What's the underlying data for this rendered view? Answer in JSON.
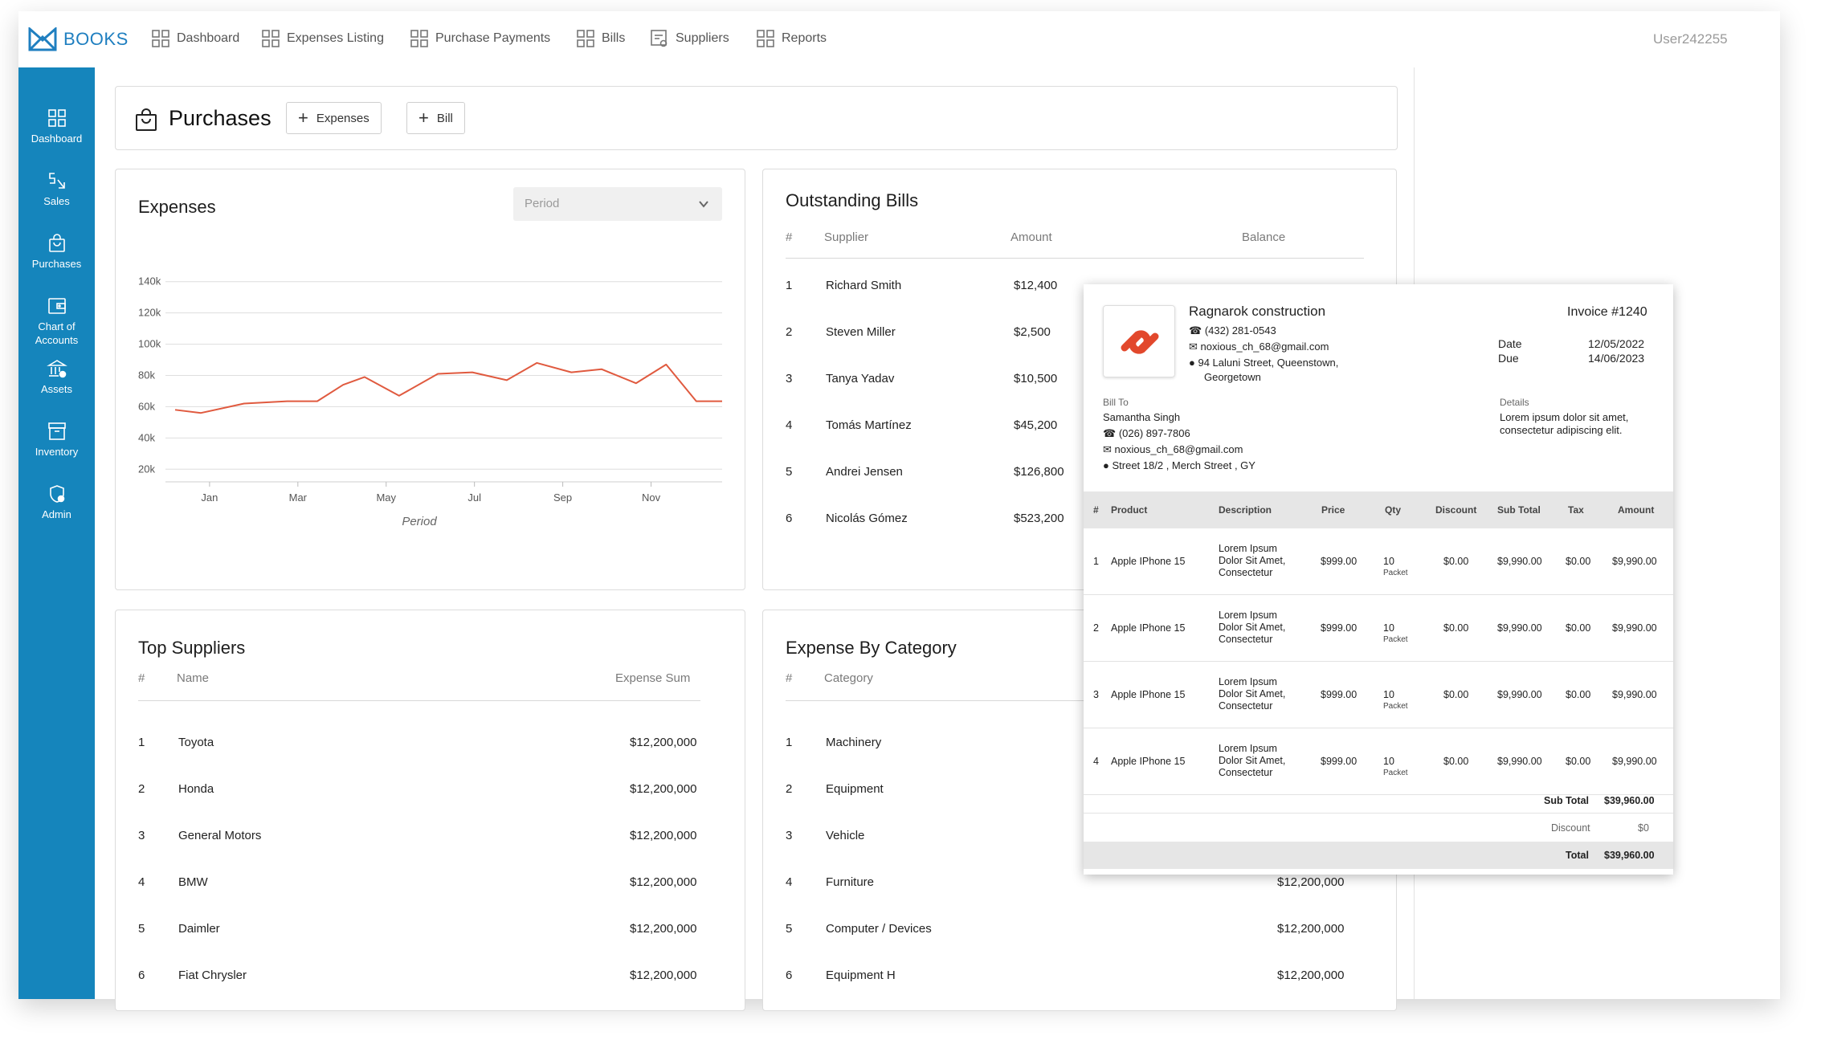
{
  "app": {
    "brand": "BOOKS",
    "user": "User242255"
  },
  "nav": [
    {
      "label": "Dashboard"
    },
    {
      "label": "Expenses Listing"
    },
    {
      "label": "Purchase Payments"
    },
    {
      "label": "Bills"
    },
    {
      "label": "Suppliers"
    },
    {
      "label": "Reports"
    }
  ],
  "sidebar": [
    {
      "label": "Dashboard"
    },
    {
      "label": "Sales"
    },
    {
      "label": "Purchases"
    },
    {
      "label": "Chart of",
      "label2": "Accounts"
    },
    {
      "label": "Assets"
    },
    {
      "label": "Inventory"
    },
    {
      "label": "Admin"
    }
  ],
  "header": {
    "title": "Purchases",
    "btn_expenses": "Expenses",
    "btn_bill": "Bill"
  },
  "expenses_card": {
    "title": "Expenses",
    "period_placeholder": "Period"
  },
  "chart_data": {
    "type": "line",
    "title": "Expenses",
    "xlabel": "Period",
    "ylabel": "",
    "x_ticks": [
      "Jan",
      "Mar",
      "May",
      "Jul",
      "Sep",
      "Nov"
    ],
    "y_ticks": [
      "140k",
      "120k",
      "100k",
      "80k",
      "60k",
      "40k",
      "20k"
    ],
    "ylim": [
      15000,
      145000
    ],
    "x": [
      0,
      0.6,
      1.6,
      2.6,
      3.3,
      3.9,
      4.4,
      5.2,
      6.1,
      6.9,
      7.7,
      8.4,
      9.2,
      9.9,
      10.7,
      11.4,
      12.1,
      12.7
    ],
    "values": [
      58000,
      56000,
      62000,
      63500,
      63500,
      74000,
      79000,
      67000,
      81000,
      82000,
      77000,
      88000,
      82000,
      84000,
      75000,
      87000,
      63500,
      63500
    ],
    "color": "#e05a3f",
    "grid": true
  },
  "outstanding": {
    "title": "Outstanding Bills",
    "headers": [
      "#",
      "Supplier",
      "Amount",
      "Balance"
    ],
    "rows": [
      {
        "n": "1",
        "supplier": "Richard Smith",
        "amount": "$12,400"
      },
      {
        "n": "2",
        "supplier": "Steven Miller",
        "amount": "$2,500"
      },
      {
        "n": "3",
        "supplier": "Tanya Yadav",
        "amount": "$10,500"
      },
      {
        "n": "4",
        "supplier": "Tomás Martínez",
        "amount": "$45,200"
      },
      {
        "n": "5",
        "supplier": "Andrei Jensen",
        "amount": "$126,800"
      },
      {
        "n": "6",
        "supplier": "Nicolás Gómez",
        "amount": "$523,200"
      }
    ]
  },
  "top_suppliers": {
    "title": "Top Suppliers",
    "headers": [
      "#",
      "Name",
      "Expense Sum"
    ],
    "rows": [
      {
        "n": "1",
        "name": "Toyota",
        "sum": "$12,200,000"
      },
      {
        "n": "2",
        "name": "Honda",
        "sum": "$12,200,000"
      },
      {
        "n": "3",
        "name": "General Motors",
        "sum": "$12,200,000"
      },
      {
        "n": "4",
        "name": "BMW",
        "sum": "$12,200,000"
      },
      {
        "n": "5",
        "name": "Daimler",
        "sum": "$12,200,000"
      },
      {
        "n": "6",
        "name": "Fiat Chrysler",
        "sum": "$12,200,000"
      }
    ]
  },
  "by_category": {
    "title": "Expense By Category",
    "headers": [
      "#",
      "Category"
    ],
    "rows": [
      {
        "n": "1",
        "name": "Machinery",
        "sum": ""
      },
      {
        "n": "2",
        "name": "Equipment",
        "sum": ""
      },
      {
        "n": "3",
        "name": "Vehicle",
        "sum": ""
      },
      {
        "n": "4",
        "name": "Furniture",
        "sum": "$12,200,000"
      },
      {
        "n": "5",
        "name": "Computer / Devices",
        "sum": "$12,200,000"
      },
      {
        "n": "6",
        "name": "Equipment H",
        "sum": "$12,200,000"
      }
    ]
  },
  "invoice": {
    "company": "Ragnarok construction",
    "phone": "(432) 281-0543",
    "email": "noxious_ch_68@gmail.com",
    "address1": "94 Laluni Street, Queenstown,",
    "address2": "Georgetown",
    "number": "Invoice #1240",
    "date_label": "Date",
    "date": "12/05/2022",
    "due_label": "Due",
    "due": "14/06/2023",
    "bill_to_label": "Bill To",
    "bill_name": "Samantha Singh",
    "bill_phone": "(026) 897-7806",
    "bill_email": "noxious_ch_68@gmail.com",
    "bill_address": "Street 18/2 , Merch Street , GY",
    "details_label": "Details",
    "details1": "Lorem ipsum dolor sit amet,",
    "details2": "consectetur adipiscing elit.",
    "headers": [
      "#",
      "Product",
      "Description",
      "Price",
      "Qty",
      "Discount",
      "Sub Total",
      "Tax",
      "Amount"
    ],
    "rows": [
      {
        "n": "1",
        "product": "Apple IPhone 15",
        "d1": "Lorem Ipsum",
        "d2": "Dolor Sit Amet,",
        "d3": "Consectetur",
        "price": "$999.00",
        "qty": "10",
        "unit": "Packet",
        "discount": "$0.00",
        "subtotal": "$9,990.00",
        "tax": "$0.00",
        "amount": "$9,990.00"
      },
      {
        "n": "2",
        "product": "Apple IPhone 15",
        "d1": "Lorem Ipsum",
        "d2": "Dolor Sit Amet,",
        "d3": "Consectetur",
        "price": "$999.00",
        "qty": "10",
        "unit": "Packet",
        "discount": "$0.00",
        "subtotal": "$9,990.00",
        "tax": "$0.00",
        "amount": "$9,990.00"
      },
      {
        "n": "3",
        "product": "Apple IPhone 15",
        "d1": "Lorem Ipsum",
        "d2": "Dolor Sit Amet,",
        "d3": "Consectetur",
        "price": "$999.00",
        "qty": "10",
        "unit": "Packet",
        "discount": "$0.00",
        "subtotal": "$9,990.00",
        "tax": "$0.00",
        "amount": "$9,990.00"
      },
      {
        "n": "4",
        "product": "Apple IPhone 15",
        "d1": "Lorem Ipsum",
        "d2": "Dolor Sit Amet,",
        "d3": "Consectetur",
        "price": "$999.00",
        "qty": "10",
        "unit": "Packet",
        "discount": "$0.00",
        "subtotal": "$9,990.00",
        "tax": "$0.00",
        "amount": "$9,990.00"
      }
    ],
    "subtotal_label": "Sub Total",
    "subtotal": "$39,960.00",
    "discount_label": "Discount",
    "discount": "$0",
    "total_label": "Total",
    "total": "$39,960.00"
  },
  "colors": {
    "sidebar": "#1585bc",
    "brand": "#1f7fc0",
    "line": "#e05a3f",
    "invoice_logo": "#e2482c"
  }
}
